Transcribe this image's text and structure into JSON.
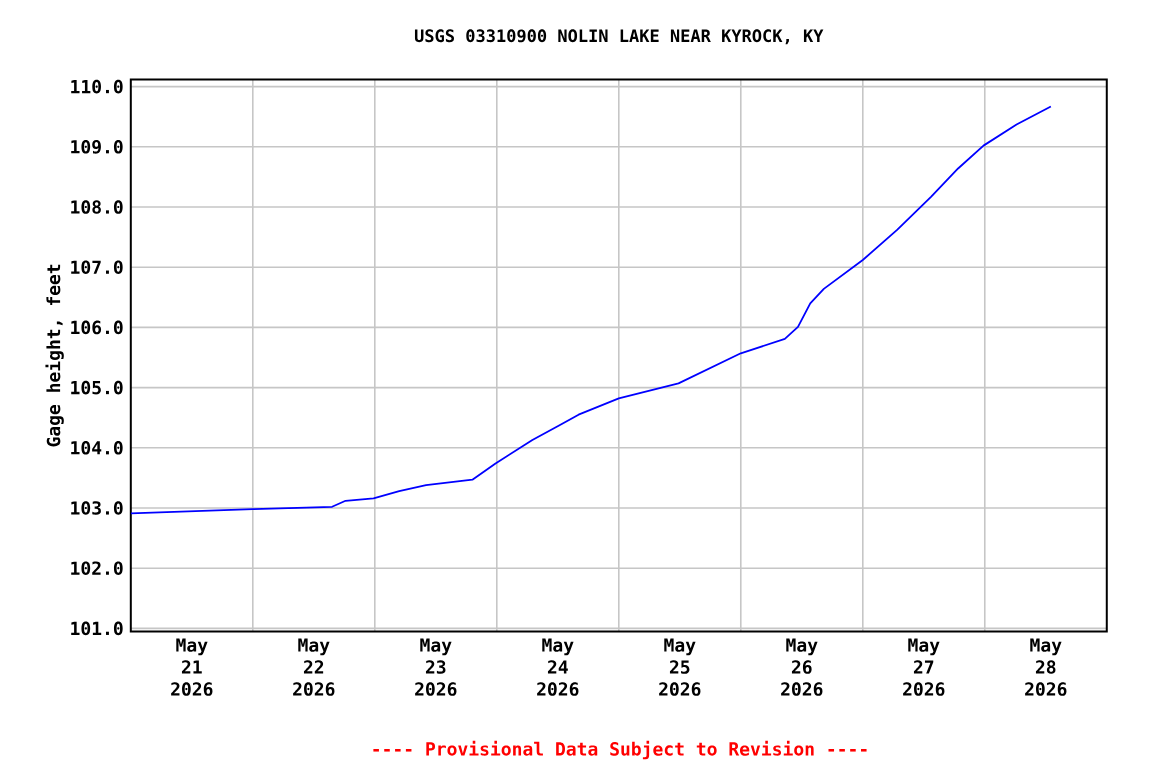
{
  "chart_data": {
    "type": "line",
    "title": "USGS 03310900 NOLIN LAKE NEAR KYROCK, KY",
    "ylabel": "Gage height, feet",
    "annotations": [
      "---- Provisional Data Subject to Revision ----"
    ],
    "x": [
      "2026-05-21T00:00",
      "2026-05-22T00:00",
      "2026-05-22T15:36",
      "2026-05-22T18:15",
      "2026-05-22T23:45",
      "2026-05-23T04:48",
      "2026-05-23T10:05",
      "2026-05-23T19:12",
      "2026-05-23T23:45",
      "2026-05-24T07:00",
      "2026-05-24T12:15",
      "2026-05-24T16:05",
      "2026-05-25T00:00",
      "2026-05-25T11:45",
      "2026-05-26T00:00",
      "2026-05-26T08:40",
      "2026-05-26T11:15",
      "2026-05-26T13:40",
      "2026-05-26T16:20",
      "2026-05-27T00:00",
      "2026-05-27T06:45",
      "2026-05-27T13:25",
      "2026-05-27T18:45",
      "2026-05-27T23:45",
      "2026-05-28T06:15",
      "2026-05-28T13:00"
    ],
    "series": [
      {
        "color": "#0000ff",
        "values": [
          102.91,
          102.98,
          103.02,
          103.12,
          103.16,
          103.28,
          103.38,
          103.47,
          103.74,
          104.13,
          104.37,
          104.55,
          104.82,
          105.07,
          105.57,
          105.81,
          106.01,
          106.4,
          106.64,
          107.12,
          107.62,
          108.17,
          108.64,
          109.02,
          109.37,
          109.67
        ]
      }
    ],
    "xlim": [
      "2026-05-21",
      "2026-05-29"
    ],
    "xticks": [
      {
        "value": "2026-05-21T12:00",
        "label": "May 21 2026"
      },
      {
        "value": "2026-05-22T12:00",
        "label": "May 22 2026"
      },
      {
        "value": "2026-05-23T12:00",
        "label": "May 23 2026"
      },
      {
        "value": "2026-05-24T12:00",
        "label": "May 24 2026"
      },
      {
        "value": "2026-05-25T12:00",
        "label": "May 25 2026"
      },
      {
        "value": "2026-05-26T12:00",
        "label": "May 26 2026"
      },
      {
        "value": "2026-05-27T12:00",
        "label": "May 27 2026"
      },
      {
        "value": "2026-05-28T12:00",
        "label": "May 28 2026"
      },
      {
        "value": "2026-05-22",
        "label": null
      },
      {
        "value": "2026-05-23",
        "label": null
      },
      {
        "value": "2026-05-24",
        "label": null
      },
      {
        "value": "2026-05-25",
        "label": null
      },
      {
        "value": "2026-05-26",
        "label": null
      },
      {
        "value": "2026-05-27",
        "label": null
      },
      {
        "value": "2026-05-28",
        "label": null
      }
    ],
    "ylim": [
      100.95,
      110.12
    ],
    "yticks": [
      {
        "value": 101,
        "label": "101.0"
      },
      {
        "value": 102,
        "label": "102.0"
      },
      {
        "value": 103,
        "label": "103.0"
      },
      {
        "value": 104,
        "label": "104.0"
      },
      {
        "value": 105,
        "label": "105.0"
      },
      {
        "value": 106,
        "label": "106.0"
      },
      {
        "value": 107,
        "label": "107.0"
      },
      {
        "value": 108,
        "label": "108.0"
      },
      {
        "value": 109,
        "label": "109.0"
      },
      {
        "value": 110,
        "label": "110.0"
      }
    ],
    "grid": true
  }
}
